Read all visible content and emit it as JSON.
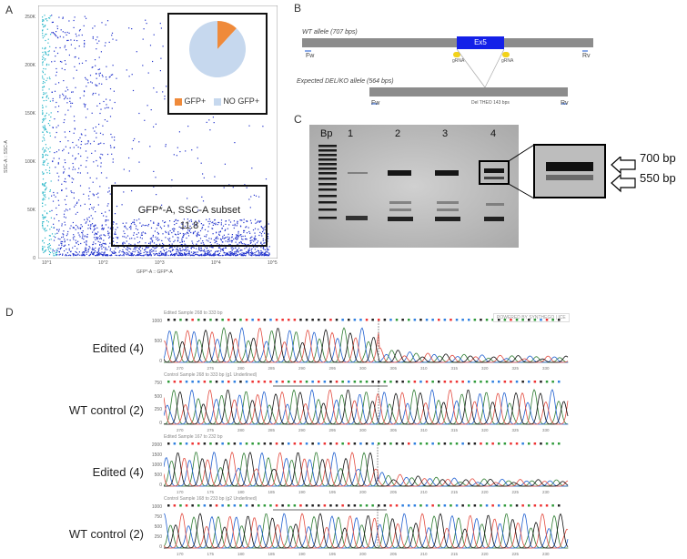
{
  "panels": {
    "a": "A",
    "b": "B",
    "c": "C",
    "d": "D"
  },
  "flow": {
    "y_axis_label": "SSC-A :: SSC-A",
    "x_axis_label": "GFP*-A :: GFP*-A",
    "y_ticks": [
      "250K",
      "200K",
      "150K",
      "100K",
      "50K",
      "0"
    ],
    "x_ticks": [
      "10^1",
      "10^2",
      "10^3",
      "10^4",
      "10^5"
    ],
    "gate_name": "GFP*-A, SSC-A subset",
    "gate_value": "11.8",
    "pie_legend": [
      "GFP+",
      "NO GFP+"
    ],
    "colors": {
      "dots": "#2233cc",
      "dense": "#29b6c8",
      "gfp": "#ef8a3a",
      "nogfp": "#c6d8ee"
    }
  },
  "chart_data": {
    "type": "pie",
    "categories": [
      "GFP+",
      "NO GFP+"
    ],
    "values": [
      11.8,
      88.2
    ]
  },
  "schematic": {
    "wt_label": "WT allele (707 bps)",
    "exon_label": "Ex5",
    "grna1": "gRNA",
    "grna2": "gRNA",
    "del_label": "Expected DEL/KO allele (564 bps)",
    "del_note": "Del THEO 143 bps",
    "fw": "Fw",
    "rv": "Rv"
  },
  "gel": {
    "ladder_label": "Bp",
    "lanes": [
      "1",
      "2",
      "3",
      "4"
    ],
    "size_upper": "700 bp",
    "size_lower": "550 bp"
  },
  "sequencing": {
    "watermark": "POWERED BY SYNTHEGO | ICE",
    "rows": [
      {
        "label": "Edited (4)",
        "title": "Edited Sample 268 to 333 bp",
        "yticks": [
          "1000",
          "500",
          "0"
        ],
        "xticks": [
          "270",
          "275",
          "280",
          "285",
          "290",
          "295",
          "300",
          "305",
          "310",
          "315",
          "320",
          "325",
          "330"
        ]
      },
      {
        "label": "WT control (2)",
        "title": "Control Sample 268 to 333 bp (g1 Underlined)",
        "yticks": [
          "750",
          "500",
          "250",
          "0"
        ],
        "xticks": [
          "270",
          "275",
          "280",
          "285",
          "290",
          "295",
          "300",
          "305",
          "310",
          "315",
          "320",
          "325",
          "330"
        ]
      },
      {
        "label": "Edited (4)",
        "title": "Edited Sample 167 to 232 bp",
        "yticks": [
          "2000",
          "1500",
          "1000",
          "500",
          "0"
        ],
        "xticks": [
          "170",
          "175",
          "180",
          "185",
          "190",
          "195",
          "200",
          "205",
          "210",
          "215",
          "220",
          "225",
          "230"
        ]
      },
      {
        "label": "WT control (2)",
        "title": "Control Sample 168 to 233 bp (g2 Underlined)",
        "yticks": [
          "1000",
          "750",
          "500",
          "250",
          "0"
        ],
        "xticks": [
          "170",
          "175",
          "180",
          "185",
          "190",
          "195",
          "200",
          "205",
          "210",
          "215",
          "220",
          "225",
          "230"
        ]
      }
    ]
  }
}
